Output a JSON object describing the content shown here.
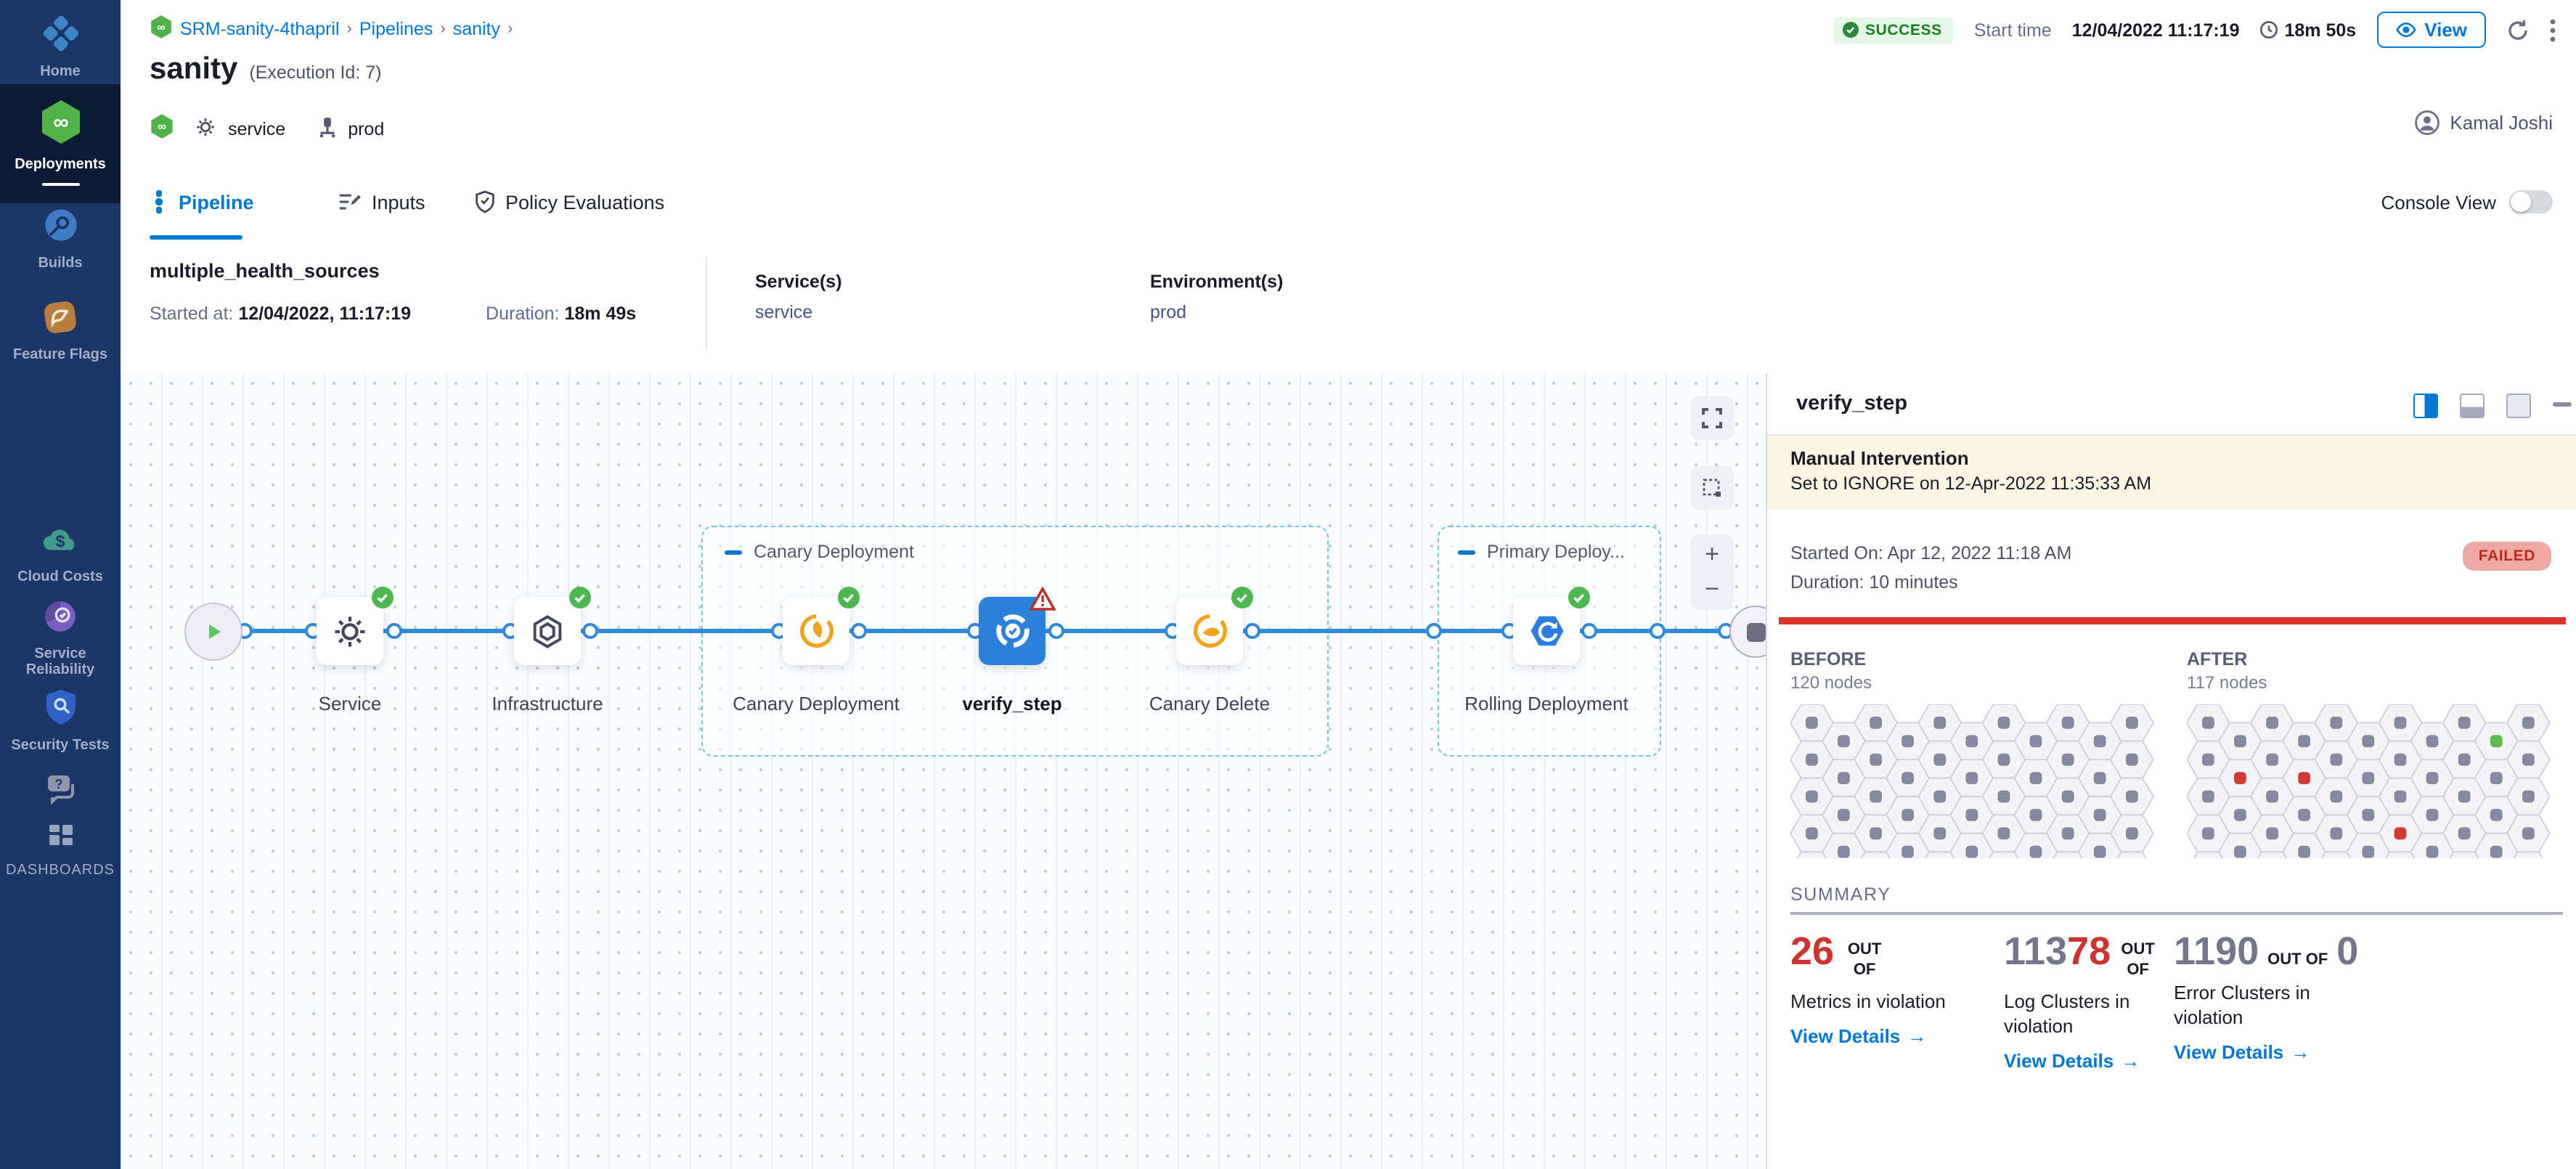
{
  "colors": {
    "accent": "#0278D5",
    "success": "#1B7D23",
    "error": "#D9342B",
    "sidebar_bg": "#1B3667",
    "connector": "#2F89DC",
    "selected_node": "#2C82DB",
    "banner_bg": "#FCF5E1"
  },
  "sidebar": {
    "items": [
      {
        "label": "Home"
      },
      {
        "label": "Deployments"
      },
      {
        "label": "Builds"
      },
      {
        "label": "Feature Flags"
      },
      {
        "label": "Cloud Costs"
      },
      {
        "label": "Service Reliability"
      },
      {
        "label": "Security Tests"
      }
    ],
    "dashboards_label": "DASHBOARDS"
  },
  "breadcrumb": {
    "project": "SRM-sanity-4thapril",
    "pipelines": "Pipelines",
    "pipeline": "sanity"
  },
  "header": {
    "title": "sanity",
    "execution_id": "(Execution Id: 7)",
    "status": "SUCCESS",
    "start_time_label": "Start time",
    "start_time": "12/04/2022 11:17:19",
    "duration": "18m 50s",
    "view_button": "View",
    "tag_service": "service",
    "tag_env": "prod",
    "user": "Kamal Joshi"
  },
  "tabs": {
    "pipeline": "Pipeline",
    "inputs": "Inputs",
    "policy": "Policy Evaluations",
    "console_view": "Console View"
  },
  "run": {
    "name": "multiple_health_sources",
    "started_label": "Started at:",
    "started": "12/04/2022, 11:17:19",
    "duration_label": "Duration:",
    "duration": "18m 49s",
    "services_label": "Service(s)",
    "service": "service",
    "environments_label": "Environment(s)",
    "environment": "prod"
  },
  "graph": {
    "service": "Service",
    "infrastructure": "Infrastructure",
    "canary_group": "Canary Deployment",
    "canary": "Canary Deployment",
    "verify": "verify_step",
    "canary_delete": "Canary Delete",
    "primary_group": "Primary Deploy...",
    "rolling": "Rolling Deployment"
  },
  "panel": {
    "title": "verify_step",
    "banner_title": "Manual Intervention",
    "banner_text": "Set to IGNORE on 12-Apr-2022 11:35:33 AM",
    "started": "Started On: Apr 12, 2022 11:18 AM",
    "duration": "Duration: 10 minutes",
    "status": "FAILED",
    "before_label": "BEFORE",
    "before_count": "120 nodes",
    "after_label": "AFTER",
    "after_count": "117 nodes",
    "summary_label": "SUMMARY",
    "compare": {
      "cols": 11,
      "rows": 5,
      "colors": {
        "default": "#8789A1",
        "red": "#CE3B34",
        "green": "#63BA50"
      },
      "before_specials": {},
      "after_specials": {
        "1-1": "red",
        "3-1": "red",
        "6-3": "red",
        "9-0": "green"
      }
    },
    "cards": [
      {
        "n1": "26",
        "n2": "",
        "out": "OUT OF",
        "total": "",
        "label": "Metrics in violation",
        "link": "View Details"
      },
      {
        "n1": "113",
        "n2": "78",
        "out": "OUT OF",
        "total": "",
        "label": "Log Clusters in violation",
        "link": "View Details"
      },
      {
        "n1": "1190",
        "n2": "",
        "out": "OUT OF",
        "total": "0",
        "label": "Error Clusters in violation",
        "link": "View Details"
      }
    ]
  }
}
